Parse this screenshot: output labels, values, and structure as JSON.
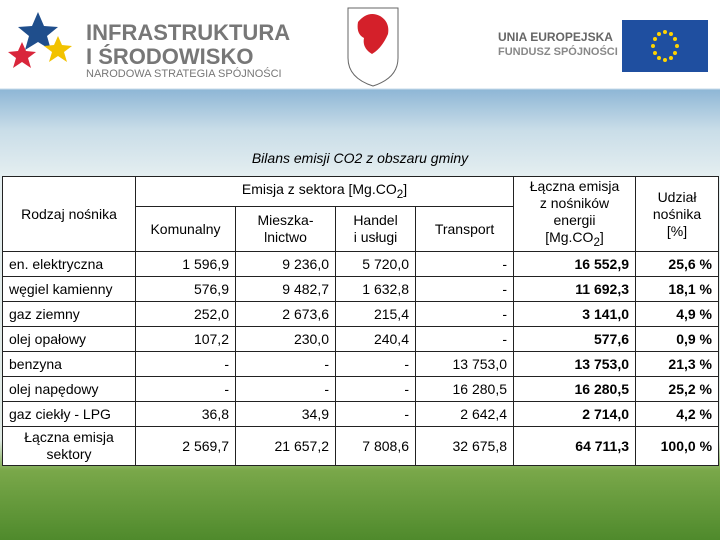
{
  "header": {
    "logo_left": {
      "line1": "INFRASTRUKTURA",
      "line2": "I ŚRODOWISKO",
      "tagline": "NARODOWA STRATEGIA SPÓJNOŚCI"
    },
    "logo_right": {
      "line1": "UNIA EUROPEJSKA",
      "line2": "FUNDUSZ SPÓJNOŚCI"
    }
  },
  "caption": "Bilans emisji CO2 z obszaru gminy",
  "table": {
    "header": {
      "carrier": "Rodzaj nośnika",
      "sector_group": {
        "text": "Emisja z sektora [Mg.CO",
        "sub": "2",
        "end": "]"
      },
      "sectors": [
        "Komunalny",
        "Mieszka-\nlnictwo",
        "Handel\ni usługi",
        "Transport"
      ],
      "total": {
        "text": "Łączna emisja\nz nośników\nenergii\n[Mg.CO",
        "sub": "2",
        "end": "]"
      },
      "share": "Udział\nnośnika\n[%]"
    },
    "rows": [
      [
        "en. elektryczna",
        "1 596,9",
        "9 236,0",
        "5 720,0",
        "-",
        "16 552,9",
        "25,6 %"
      ],
      [
        "węgiel kamienny",
        "576,9",
        "9 482,7",
        "1 632,8",
        "-",
        "11 692,3",
        "18,1 %"
      ],
      [
        "gaz ziemny",
        "252,0",
        "2 673,6",
        "215,4",
        "-",
        "3 141,0",
        "4,9 %"
      ],
      [
        "olej opałowy",
        "107,2",
        "230,0",
        "240,4",
        "-",
        "577,6",
        "0,9 %"
      ],
      [
        "benzyna",
        "-",
        "-",
        "-",
        "13 753,0",
        "13 753,0",
        "21,3 %"
      ],
      [
        "olej napędowy",
        "-",
        "-",
        "-",
        "16 280,5",
        "16 280,5",
        "25,2 %"
      ],
      [
        "gaz ciekły - LPG",
        "36,8",
        "34,9",
        "-",
        "2 642,4",
        "2 714,0",
        "4,2 %"
      ],
      [
        "Łączna emisja\nsektory",
        "2 569,7",
        "21 657,2",
        "7 808,6",
        "32 675,8",
        "64 711,3",
        "100,0 %"
      ]
    ]
  }
}
